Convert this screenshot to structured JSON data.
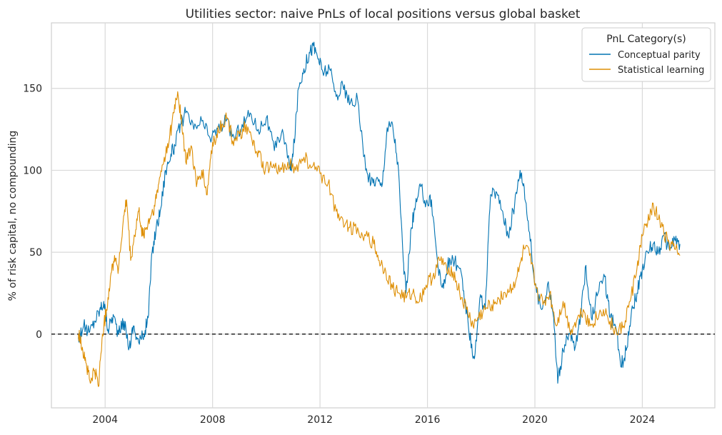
{
  "chart_data": {
    "type": "line",
    "title": "Utilities sector: naive PnLs of local positions versus global basket",
    "xlabel": "",
    "ylabel": "% of risk capital, no compounding",
    "xlim": [
      2002.0,
      2026.7
    ],
    "ylim": [
      -45,
      190
    ],
    "x_ticks": [
      2004,
      2008,
      2012,
      2016,
      2020,
      2024
    ],
    "x_tick_labels": [
      "2004",
      "2008",
      "2012",
      "2016",
      "2020",
      "2024"
    ],
    "y_ticks": [
      0,
      50,
      100,
      150
    ],
    "y_tick_labels": [
      "0",
      "50",
      "100",
      "150"
    ],
    "grid": true,
    "zero_line": {
      "y": 0,
      "style": "dashed",
      "color": "#000000"
    },
    "legend": {
      "title": "PnL Category(s)",
      "placement": "top-right"
    },
    "series": [
      {
        "name": "Conceptual parity",
        "color": "#0173b2",
        "points": [
          [
            2003.0,
            -2
          ],
          [
            2003.2,
            5
          ],
          [
            2003.4,
            1
          ],
          [
            2003.6,
            8
          ],
          [
            2003.8,
            15
          ],
          [
            2003.95,
            20
          ],
          [
            2004.1,
            3
          ],
          [
            2004.3,
            12
          ],
          [
            2004.5,
            0
          ],
          [
            2004.7,
            8
          ],
          [
            2004.9,
            -8
          ],
          [
            2005.05,
            5
          ],
          [
            2005.25,
            -5
          ],
          [
            2005.45,
            0
          ],
          [
            2005.6,
            10
          ],
          [
            2005.75,
            50
          ],
          [
            2005.9,
            65
          ],
          [
            2006.05,
            75
          ],
          [
            2006.25,
            100
          ],
          [
            2006.45,
            110
          ],
          [
            2006.6,
            115
          ],
          [
            2006.8,
            128
          ],
          [
            2007.0,
            135
          ],
          [
            2007.3,
            125
          ],
          [
            2007.6,
            130
          ],
          [
            2007.9,
            120
          ],
          [
            2008.2,
            125
          ],
          [
            2008.5,
            130
          ],
          [
            2008.8,
            120
          ],
          [
            2009.1,
            128
          ],
          [
            2009.4,
            135
          ],
          [
            2009.7,
            125
          ],
          [
            2010.0,
            132
          ],
          [
            2010.3,
            112
          ],
          [
            2010.6,
            125
          ],
          [
            2010.9,
            100
          ],
          [
            2011.0,
            110
          ],
          [
            2011.2,
            150
          ],
          [
            2011.4,
            162
          ],
          [
            2011.6,
            172
          ],
          [
            2011.75,
            176
          ],
          [
            2011.95,
            168
          ],
          [
            2012.1,
            160
          ],
          [
            2012.35,
            162
          ],
          [
            2012.6,
            145
          ],
          [
            2012.85,
            152
          ],
          [
            2013.1,
            140
          ],
          [
            2013.4,
            143
          ],
          [
            2013.7,
            100
          ],
          [
            2013.9,
            92
          ],
          [
            2014.1,
            95
          ],
          [
            2014.3,
            90
          ],
          [
            2014.5,
            126
          ],
          [
            2014.7,
            128
          ],
          [
            2014.9,
            105
          ],
          [
            2015.1,
            45
          ],
          [
            2015.2,
            25
          ],
          [
            2015.4,
            65
          ],
          [
            2015.55,
            78
          ],
          [
            2015.75,
            90
          ],
          [
            2015.95,
            80
          ],
          [
            2016.15,
            82
          ],
          [
            2016.4,
            40
          ],
          [
            2016.6,
            28
          ],
          [
            2016.75,
            42
          ],
          [
            2016.95,
            46
          ],
          [
            2017.2,
            40
          ],
          [
            2017.4,
            20
          ],
          [
            2017.55,
            0
          ],
          [
            2017.75,
            -15
          ],
          [
            2017.95,
            22
          ],
          [
            2018.15,
            15
          ],
          [
            2018.35,
            85
          ],
          [
            2018.55,
            87
          ],
          [
            2018.8,
            75
          ],
          [
            2019.0,
            60
          ],
          [
            2019.25,
            80
          ],
          [
            2019.45,
            100
          ],
          [
            2019.6,
            90
          ],
          [
            2019.8,
            62
          ],
          [
            2020.0,
            30
          ],
          [
            2020.25,
            15
          ],
          [
            2020.5,
            32
          ],
          [
            2020.7,
            10
          ],
          [
            2020.85,
            -30
          ],
          [
            2021.05,
            -10
          ],
          [
            2021.3,
            0
          ],
          [
            2021.5,
            -8
          ],
          [
            2021.7,
            10
          ],
          [
            2021.9,
            42
          ],
          [
            2022.1,
            10
          ],
          [
            2022.35,
            25
          ],
          [
            2022.6,
            35
          ],
          [
            2022.8,
            10
          ],
          [
            2023.0,
            5
          ],
          [
            2023.2,
            -20
          ],
          [
            2023.4,
            -10
          ],
          [
            2023.6,
            15
          ],
          [
            2023.8,
            25
          ],
          [
            2024.0,
            40
          ],
          [
            2024.2,
            50
          ],
          [
            2024.4,
            55
          ],
          [
            2024.6,
            50
          ],
          [
            2024.8,
            60
          ],
          [
            2025.0,
            52
          ],
          [
            2025.2,
            58
          ],
          [
            2025.4,
            55
          ]
        ]
      },
      {
        "name": "Statistical learning",
        "color": "#de8f05",
        "points": [
          [
            2003.0,
            0
          ],
          [
            2003.15,
            -8
          ],
          [
            2003.3,
            -18
          ],
          [
            2003.45,
            -30
          ],
          [
            2003.6,
            -22
          ],
          [
            2003.75,
            -32
          ],
          [
            2003.9,
            0
          ],
          [
            2004.05,
            15
          ],
          [
            2004.2,
            35
          ],
          [
            2004.35,
            48
          ],
          [
            2004.5,
            40
          ],
          [
            2004.65,
            65
          ],
          [
            2004.8,
            82
          ],
          [
            2004.95,
            45
          ],
          [
            2005.1,
            60
          ],
          [
            2005.25,
            75
          ],
          [
            2005.4,
            60
          ],
          [
            2005.55,
            65
          ],
          [
            2005.7,
            72
          ],
          [
            2005.85,
            78
          ],
          [
            2006.0,
            92
          ],
          [
            2006.2,
            108
          ],
          [
            2006.4,
            120
          ],
          [
            2006.55,
            135
          ],
          [
            2006.7,
            148
          ],
          [
            2006.85,
            130
          ],
          [
            2007.0,
            105
          ],
          [
            2007.2,
            115
          ],
          [
            2007.4,
            90
          ],
          [
            2007.6,
            100
          ],
          [
            2007.8,
            85
          ],
          [
            2007.95,
            112
          ],
          [
            2008.15,
            122
          ],
          [
            2008.35,
            128
          ],
          [
            2008.55,
            132
          ],
          [
            2008.75,
            118
          ],
          [
            2009.0,
            122
          ],
          [
            2009.25,
            128
          ],
          [
            2009.5,
            115
          ],
          [
            2009.7,
            112
          ],
          [
            2009.9,
            100
          ],
          [
            2010.2,
            102
          ],
          [
            2010.5,
            99
          ],
          [
            2010.8,
            105
          ],
          [
            2011.1,
            100
          ],
          [
            2011.4,
            108
          ],
          [
            2011.7,
            102
          ],
          [
            2012.0,
            98
          ],
          [
            2012.3,
            92
          ],
          [
            2012.6,
            75
          ],
          [
            2012.85,
            70
          ],
          [
            2013.1,
            65
          ],
          [
            2013.4,
            65
          ],
          [
            2013.7,
            60
          ],
          [
            2014.0,
            55
          ],
          [
            2014.2,
            45
          ],
          [
            2014.45,
            38
          ],
          [
            2014.7,
            28
          ],
          [
            2014.95,
            25
          ],
          [
            2015.2,
            22
          ],
          [
            2015.45,
            25
          ],
          [
            2015.7,
            20
          ],
          [
            2015.95,
            30
          ],
          [
            2016.2,
            35
          ],
          [
            2016.45,
            45
          ],
          [
            2016.7,
            42
          ],
          [
            2016.95,
            38
          ],
          [
            2017.2,
            25
          ],
          [
            2017.45,
            15
          ],
          [
            2017.7,
            5
          ],
          [
            2017.9,
            10
          ],
          [
            2018.15,
            15
          ],
          [
            2018.4,
            18
          ],
          [
            2018.65,
            22
          ],
          [
            2018.9,
            25
          ],
          [
            2019.15,
            28
          ],
          [
            2019.4,
            38
          ],
          [
            2019.6,
            52
          ],
          [
            2019.8,
            48
          ],
          [
            2020.05,
            28
          ],
          [
            2020.3,
            18
          ],
          [
            2020.55,
            25
          ],
          [
            2020.8,
            5
          ],
          [
            2021.05,
            20
          ],
          [
            2021.3,
            2
          ],
          [
            2021.55,
            8
          ],
          [
            2021.8,
            15
          ],
          [
            2022.05,
            5
          ],
          [
            2022.3,
            10
          ],
          [
            2022.55,
            15
          ],
          [
            2022.8,
            8
          ],
          [
            2023.05,
            0
          ],
          [
            2023.3,
            5
          ],
          [
            2023.55,
            20
          ],
          [
            2023.8,
            40
          ],
          [
            2024.0,
            60
          ],
          [
            2024.2,
            68
          ],
          [
            2024.4,
            80
          ],
          [
            2024.6,
            70
          ],
          [
            2024.8,
            62
          ],
          [
            2025.0,
            55
          ],
          [
            2025.2,
            52
          ],
          [
            2025.4,
            48
          ]
        ]
      }
    ]
  }
}
